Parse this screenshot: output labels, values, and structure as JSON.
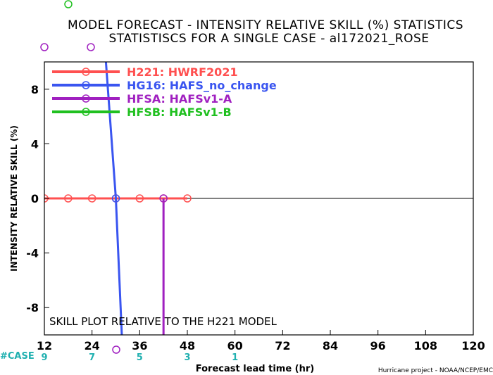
{
  "chart_data": {
    "type": "line",
    "title_line1": "MODEL FORECAST - INTENSITY RELATIVE SKILL (%) STATISTICS",
    "title_line2": "STATISTISCS FOR A SINGLE CASE - al172021_ROSE",
    "ylabel": "INTENSITY RELATIVE SKILL (%)",
    "xlabel": "Forecast lead time (hr)",
    "xlim": [
      12,
      120
    ],
    "ylim": [
      -10,
      10
    ],
    "x_ticks": [
      12,
      24,
      36,
      48,
      60,
      72,
      84,
      96,
      108,
      120
    ],
    "y_ticks": [
      -8,
      -4,
      0,
      4,
      8
    ],
    "case_label": "#CASE",
    "case_counts": [
      {
        "x": 12,
        "count": "9"
      },
      {
        "x": 24,
        "count": "7"
      },
      {
        "x": 36,
        "count": "5"
      },
      {
        "x": 48,
        "count": "3"
      },
      {
        "x": 60,
        "count": "1"
      }
    ],
    "annotation": "SKILL PLOT RELATIVE TO THE H221 MODEL",
    "credit": "Hurricane project - NOAA/NCEP/EMC",
    "legend_position": "top-left",
    "series": [
      {
        "name": "H221: HWRF2021",
        "color": "#ff5050",
        "x": [
          12,
          18,
          24,
          30,
          36,
          42,
          48
        ],
        "y": [
          0,
          0,
          0,
          0,
          0,
          0,
          0
        ]
      },
      {
        "name": "HG16: HAFS_no_change",
        "color": "#3a55f0",
        "x": [
          27.5,
          30,
          31.5
        ],
        "y": [
          10,
          0,
          -10
        ]
      },
      {
        "name": "HFSA: HAFSv1-A",
        "color": "#a020c0",
        "x": [
          42,
          42
        ],
        "y": [
          0,
          -10
        ]
      },
      {
        "name": "HFSB: HAFSv1-B",
        "color": "#20c020",
        "x": [],
        "y": []
      }
    ]
  }
}
